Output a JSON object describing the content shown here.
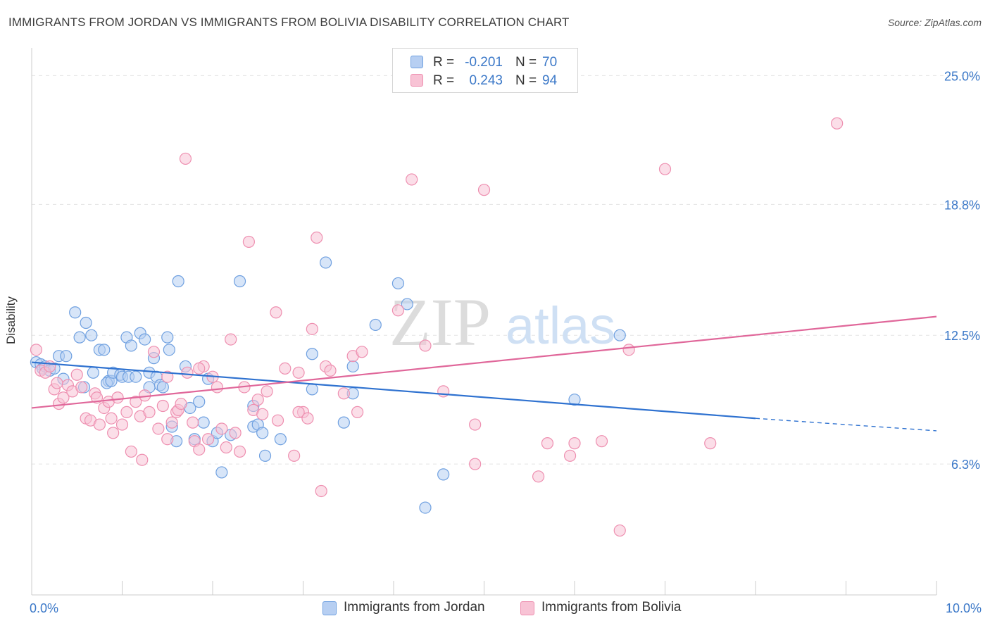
{
  "header": {
    "title": "IMMIGRANTS FROM JORDAN VS IMMIGRANTS FROM BOLIVIA DISABILITY CORRELATION CHART",
    "source": "Source: ZipAtlas.com"
  },
  "colors": {
    "jordan": "#6fa0e0",
    "jordan_fill": "#b7cff2",
    "jordan_line": "#2f72d0",
    "bolivia": "#ee8fb0",
    "bolivia_fill": "#f8c3d5",
    "bolivia_line": "#e0679a",
    "axis_text": "#3b78c8"
  },
  "legend": {
    "jordan": {
      "r_label": "R =",
      "r_value": "-0.201",
      "n_label": "N =",
      "n_value": "70"
    },
    "bolivia": {
      "r_label": "R =",
      "r_value": "0.243",
      "n_label": "N =",
      "n_value": "94"
    }
  },
  "chart_data": {
    "type": "scatter",
    "title": "IMMIGRANTS FROM JORDAN VS IMMIGRANTS FROM BOLIVIA DISABILITY CORRELATION CHART",
    "xlabel": "",
    "ylabel": "Disability",
    "xlim": [
      0,
      10
    ],
    "ylim": [
      0,
      26.2
    ],
    "x_tick_labels": [
      {
        "value": 0,
        "label": "0.0%"
      },
      {
        "value": 10,
        "label": "10.0%"
      }
    ],
    "y_tick_labels": [
      {
        "value": 6.3,
        "label": "6.3%"
      },
      {
        "value": 12.5,
        "label": "12.5%"
      },
      {
        "value": 18.8,
        "label": "18.8%"
      },
      {
        "value": 25.0,
        "label": "25.0%"
      }
    ],
    "watermark": {
      "part1": "ZIP",
      "part2": "atlas"
    },
    "series": [
      {
        "name": "Immigrants from Jordan",
        "color_key": "jordan",
        "trend": {
          "x0": 0,
          "y0": 11.2,
          "x1": 8.0,
          "y1": 8.5,
          "dash_to_x": 10,
          "dash_to_y": 7.9
        },
        "points": [
          [
            0.05,
            11.2
          ],
          [
            0.1,
            11.1
          ],
          [
            0.12,
            10.9
          ],
          [
            0.15,
            11.0
          ],
          [
            0.2,
            10.8
          ],
          [
            0.25,
            10.9
          ],
          [
            0.3,
            11.5
          ],
          [
            0.35,
            10.4
          ],
          [
            0.38,
            11.5
          ],
          [
            0.48,
            13.6
          ],
          [
            0.53,
            12.4
          ],
          [
            0.6,
            13.1
          ],
          [
            0.66,
            12.5
          ],
          [
            0.58,
            10.0
          ],
          [
            0.68,
            10.7
          ],
          [
            0.75,
            11.8
          ],
          [
            0.8,
            11.8
          ],
          [
            0.85,
            10.3
          ],
          [
            0.83,
            10.2
          ],
          [
            0.88,
            10.3
          ],
          [
            0.9,
            10.7
          ],
          [
            0.98,
            10.6
          ],
          [
            1.0,
            10.5
          ],
          [
            1.05,
            12.4
          ],
          [
            1.07,
            10.5
          ],
          [
            1.1,
            12.0
          ],
          [
            1.15,
            10.5
          ],
          [
            1.2,
            12.6
          ],
          [
            1.25,
            12.3
          ],
          [
            1.3,
            10.0
          ],
          [
            1.3,
            10.7
          ],
          [
            1.35,
            11.4
          ],
          [
            1.38,
            10.5
          ],
          [
            1.42,
            10.1
          ],
          [
            1.45,
            10.0
          ],
          [
            1.5,
            12.4
          ],
          [
            1.52,
            11.8
          ],
          [
            1.55,
            8.1
          ],
          [
            1.6,
            7.4
          ],
          [
            1.62,
            15.1
          ],
          [
            1.7,
            11.0
          ],
          [
            1.75,
            9.0
          ],
          [
            1.8,
            7.5
          ],
          [
            1.85,
            9.3
          ],
          [
            1.9,
            8.3
          ],
          [
            1.95,
            10.4
          ],
          [
            2.0,
            7.4
          ],
          [
            2.05,
            7.8
          ],
          [
            2.1,
            5.9
          ],
          [
            2.2,
            7.7
          ],
          [
            2.3,
            15.1
          ],
          [
            2.45,
            8.1
          ],
          [
            2.45,
            9.1
          ],
          [
            2.5,
            8.2
          ],
          [
            2.55,
            7.8
          ],
          [
            2.58,
            6.7
          ],
          [
            2.75,
            7.5
          ],
          [
            3.1,
            9.9
          ],
          [
            3.1,
            11.6
          ],
          [
            3.25,
            16.0
          ],
          [
            3.45,
            8.3
          ],
          [
            3.55,
            9.7
          ],
          [
            3.55,
            11.0
          ],
          [
            3.8,
            13.0
          ],
          [
            4.05,
            15.0
          ],
          [
            4.15,
            14.0
          ],
          [
            4.35,
            4.2
          ],
          [
            4.55,
            5.8
          ],
          [
            6.0,
            9.4
          ],
          [
            6.5,
            12.5
          ]
        ]
      },
      {
        "name": "Immigrants from Bolivia",
        "color_key": "bolivia",
        "trend": {
          "x0": 0,
          "y0": 9.0,
          "x1": 10,
          "y1": 13.4
        },
        "points": [
          [
            0.05,
            11.8
          ],
          [
            0.1,
            10.8
          ],
          [
            0.15,
            10.7
          ],
          [
            0.2,
            11.0
          ],
          [
            0.25,
            9.9
          ],
          [
            0.28,
            10.2
          ],
          [
            0.3,
            9.2
          ],
          [
            0.35,
            9.5
          ],
          [
            0.4,
            10.1
          ],
          [
            0.45,
            9.8
          ],
          [
            0.5,
            10.6
          ],
          [
            0.55,
            10.0
          ],
          [
            0.6,
            8.5
          ],
          [
            0.65,
            8.4
          ],
          [
            0.7,
            9.7
          ],
          [
            0.72,
            9.5
          ],
          [
            0.75,
            8.2
          ],
          [
            0.8,
            9.0
          ],
          [
            0.85,
            9.3
          ],
          [
            0.88,
            8.5
          ],
          [
            0.9,
            7.8
          ],
          [
            0.95,
            9.5
          ],
          [
            1.0,
            8.2
          ],
          [
            1.05,
            8.8
          ],
          [
            1.1,
            6.9
          ],
          [
            1.15,
            9.3
          ],
          [
            1.2,
            8.6
          ],
          [
            1.22,
            6.5
          ],
          [
            1.25,
            9.6
          ],
          [
            1.3,
            8.8
          ],
          [
            1.35,
            11.7
          ],
          [
            1.4,
            8.0
          ],
          [
            1.45,
            9.1
          ],
          [
            1.5,
            7.5
          ],
          [
            1.55,
            8.3
          ],
          [
            1.6,
            8.8
          ],
          [
            1.62,
            8.9
          ],
          [
            1.65,
            9.2
          ],
          [
            1.7,
            21.0
          ],
          [
            1.72,
            10.7
          ],
          [
            1.78,
            8.3
          ],
          [
            1.8,
            7.4
          ],
          [
            1.85,
            7.0
          ],
          [
            1.9,
            11.0
          ],
          [
            1.95,
            7.5
          ],
          [
            2.0,
            10.5
          ],
          [
            2.05,
            10.0
          ],
          [
            2.1,
            8.0
          ],
          [
            2.15,
            7.1
          ],
          [
            2.2,
            12.3
          ],
          [
            2.25,
            7.8
          ],
          [
            2.3,
            6.9
          ],
          [
            2.35,
            10.0
          ],
          [
            2.4,
            17.0
          ],
          [
            2.45,
            8.9
          ],
          [
            2.5,
            9.4
          ],
          [
            2.55,
            8.7
          ],
          [
            2.6,
            9.8
          ],
          [
            2.7,
            13.6
          ],
          [
            2.72,
            8.4
          ],
          [
            2.8,
            10.9
          ],
          [
            2.9,
            6.7
          ],
          [
            2.95,
            10.7
          ],
          [
            3.0,
            8.8
          ],
          [
            3.05,
            8.5
          ],
          [
            3.1,
            12.8
          ],
          [
            3.15,
            17.2
          ],
          [
            3.2,
            5.0
          ],
          [
            3.25,
            11.0
          ],
          [
            3.3,
            10.8
          ],
          [
            3.45,
            9.7
          ],
          [
            3.55,
            11.5
          ],
          [
            3.6,
            8.8
          ],
          [
            3.65,
            11.7
          ],
          [
            4.05,
            13.7
          ],
          [
            4.2,
            20.0
          ],
          [
            4.35,
            12.0
          ],
          [
            4.55,
            9.8
          ],
          [
            4.9,
            6.3
          ],
          [
            5.0,
            19.5
          ],
          [
            5.6,
            5.7
          ],
          [
            5.7,
            7.3
          ],
          [
            6.0,
            7.3
          ],
          [
            6.3,
            7.4
          ],
          [
            6.5,
            3.1
          ],
          [
            6.6,
            11.8
          ],
          [
            7.0,
            20.5
          ],
          [
            7.5,
            7.3
          ],
          [
            8.9,
            22.7
          ],
          [
            5.95,
            6.7
          ],
          [
            4.9,
            8.2
          ],
          [
            2.95,
            8.8
          ],
          [
            1.5,
            10.5
          ],
          [
            1.85,
            10.9
          ]
        ]
      }
    ]
  },
  "bottom_legend": {
    "jordan_label": "Immigrants from Jordan",
    "bolivia_label": "Immigrants from Bolivia"
  }
}
